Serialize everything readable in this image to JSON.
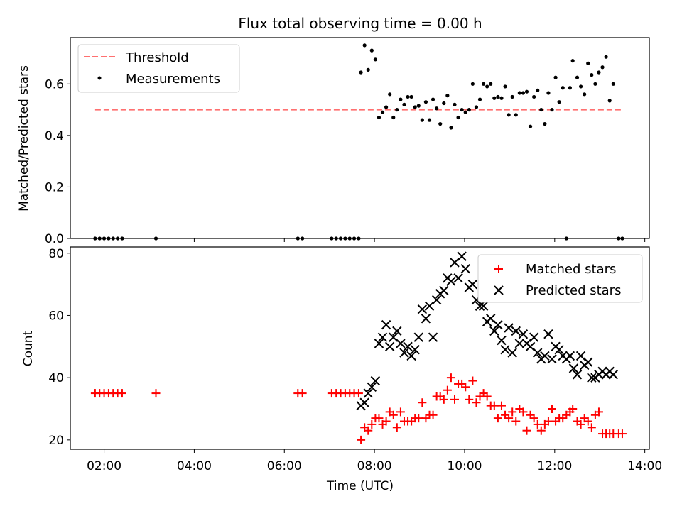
{
  "figure": {
    "title": "Flux total observing time = 0.00 h"
  },
  "chart_data": [
    {
      "type": "scatter",
      "title": "Flux total observing time = 0.00 h",
      "xlabel": "",
      "ylabel": "Matched/Predicted stars",
      "xlim": [
        1.25,
        14.1
      ],
      "ylim": [
        0.0,
        0.78
      ],
      "yticks": [
        0.0,
        0.2,
        0.4,
        0.6
      ],
      "ytick_labels": [
        "0.0",
        "0.2",
        "0.4",
        "0.6"
      ],
      "legend_position": "upper-left",
      "threshold": {
        "name": "Threshold",
        "y": 0.5,
        "x_range": [
          1.8,
          13.5
        ],
        "color": "#ff7070"
      },
      "series": [
        {
          "name": "Measurements",
          "marker": "dot",
          "color": "#000000",
          "x": [
            1.8,
            1.9,
            2.0,
            2.1,
            2.2,
            2.3,
            2.4,
            3.15,
            6.3,
            6.4,
            7.05,
            7.15,
            7.25,
            7.35,
            7.45,
            7.55,
            7.65,
            7.7,
            7.78,
            7.86,
            7.94,
            8.02,
            8.1,
            8.18,
            8.26,
            8.34,
            8.42,
            8.5,
            8.58,
            8.66,
            8.74,
            8.82,
            8.9,
            8.98,
            9.06,
            9.14,
            9.22,
            9.3,
            9.38,
            9.46,
            9.54,
            9.62,
            9.7,
            9.78,
            9.86,
            9.94,
            10.02,
            10.1,
            10.18,
            10.26,
            10.34,
            10.42,
            10.5,
            10.58,
            10.66,
            10.74,
            10.82,
            10.9,
            10.98,
            11.06,
            11.14,
            11.22,
            11.3,
            11.38,
            11.46,
            11.54,
            11.62,
            11.7,
            11.78,
            11.86,
            11.94,
            12.02,
            12.1,
            12.18,
            12.26,
            12.34,
            12.4,
            12.5,
            12.58,
            12.66,
            12.74,
            12.82,
            12.9,
            12.98,
            13.06,
            13.14,
            13.22,
            13.3,
            13.42,
            13.5
          ],
          "y": [
            0,
            0,
            0,
            0,
            0,
            0,
            0,
            0,
            0,
            0,
            0,
            0,
            0,
            0,
            0,
            0,
            0,
            0.645,
            0.75,
            0.655,
            0.73,
            0.695,
            0.47,
            0.49,
            0.51,
            0.56,
            0.47,
            0.5,
            0.54,
            0.52,
            0.55,
            0.55,
            0.51,
            0.515,
            0.46,
            0.53,
            0.46,
            0.54,
            0.505,
            0.445,
            0.525,
            0.555,
            0.43,
            0.52,
            0.47,
            0.5,
            0.49,
            0.5,
            0.6,
            0.51,
            0.54,
            0.6,
            0.59,
            0.6,
            0.545,
            0.55,
            0.545,
            0.59,
            0.48,
            0.55,
            0.48,
            0.565,
            0.565,
            0.57,
            0.435,
            0.55,
            0.575,
            0.5,
            0.445,
            0.565,
            0.5,
            0.625,
            0.53,
            0.585,
            0.0,
            0.585,
            0.69,
            0.625,
            0.59,
            0.56,
            0.68,
            0.635,
            0.6,
            0.645,
            0.665,
            0.705,
            0.535,
            0.6,
            0,
            0
          ]
        }
      ]
    },
    {
      "type": "scatter",
      "title": "",
      "xlabel": "Time (UTC)",
      "ylabel": "Count",
      "xlim": [
        1.25,
        14.1
      ],
      "ylim": [
        17,
        82
      ],
      "xticks": [
        2,
        4,
        6,
        8,
        10,
        12,
        14
      ],
      "xtick_labels": [
        "02:00",
        "04:00",
        "06:00",
        "08:00",
        "10:00",
        "12:00",
        "14:00"
      ],
      "yticks": [
        20,
        40,
        60,
        80
      ],
      "ytick_labels": [
        "20",
        "40",
        "60",
        "80"
      ],
      "legend_position": "upper-right",
      "series": [
        {
          "name": "Matched stars",
          "marker": "plus",
          "color": "#ff0000",
          "x": [
            1.8,
            1.9,
            2.0,
            2.1,
            2.2,
            2.3,
            2.4,
            3.15,
            6.3,
            6.4,
            7.05,
            7.15,
            7.25,
            7.35,
            7.45,
            7.55,
            7.65,
            7.7,
            7.78,
            7.86,
            7.94,
            8.02,
            8.1,
            8.18,
            8.26,
            8.34,
            8.42,
            8.5,
            8.58,
            8.66,
            8.74,
            8.82,
            8.9,
            8.98,
            9.06,
            9.14,
            9.22,
            9.3,
            9.38,
            9.46,
            9.54,
            9.62,
            9.7,
            9.78,
            9.86,
            9.94,
            10.02,
            10.1,
            10.18,
            10.26,
            10.34,
            10.42,
            10.5,
            10.58,
            10.66,
            10.74,
            10.82,
            10.9,
            10.98,
            11.06,
            11.14,
            11.22,
            11.3,
            11.38,
            11.46,
            11.54,
            11.62,
            11.7,
            11.78,
            11.86,
            11.94,
            12.02,
            12.1,
            12.18,
            12.26,
            12.34,
            12.4,
            12.5,
            12.58,
            12.66,
            12.74,
            12.82,
            12.9,
            12.98,
            13.06,
            13.14,
            13.22,
            13.3,
            13.42,
            13.5
          ],
          "y": [
            35,
            35,
            35,
            35,
            35,
            35,
            35,
            35,
            35,
            35,
            35,
            35,
            35,
            35,
            35,
            35,
            35,
            20,
            24,
            23,
            25,
            27,
            27,
            25,
            26,
            29,
            28,
            24,
            29,
            26,
            26,
            26,
            27,
            27,
            32,
            27,
            28,
            28,
            34,
            34,
            33,
            36,
            40,
            33,
            38,
            38,
            37,
            33,
            39,
            32,
            34,
            35,
            34,
            31,
            31,
            27,
            31,
            28,
            27,
            29,
            26,
            30,
            29,
            23,
            28,
            27,
            25,
            23,
            25,
            26,
            30,
            26,
            27,
            27,
            28,
            29,
            30,
            26,
            25,
            27,
            26,
            24,
            28,
            29,
            22,
            22,
            22,
            22,
            22,
            22
          ]
        },
        {
          "name": "Predicted stars",
          "marker": "x",
          "color": "#000000",
          "x": [
            7.7,
            7.78,
            7.86,
            7.94,
            8.02,
            8.1,
            8.18,
            8.26,
            8.34,
            8.42,
            8.5,
            8.58,
            8.66,
            8.74,
            8.82,
            8.9,
            8.98,
            9.06,
            9.14,
            9.22,
            9.3,
            9.38,
            9.46,
            9.54,
            9.62,
            9.7,
            9.78,
            9.86,
            9.94,
            10.02,
            10.1,
            10.18,
            10.26,
            10.34,
            10.42,
            10.5,
            10.58,
            10.66,
            10.74,
            10.82,
            10.9,
            10.98,
            11.06,
            11.14,
            11.22,
            11.3,
            11.38,
            11.46,
            11.54,
            11.62,
            11.7,
            11.78,
            11.86,
            11.94,
            12.02,
            12.1,
            12.18,
            12.26,
            12.34,
            12.42,
            12.5,
            12.58,
            12.66,
            12.74,
            12.82,
            12.9,
            12.98,
            13.06,
            13.14,
            13.22,
            13.3
          ],
          "y": [
            31,
            32,
            35,
            37,
            39,
            51,
            53,
            57,
            50,
            53,
            55,
            51,
            48,
            50,
            47,
            49,
            53,
            62,
            59,
            63,
            53,
            65,
            67,
            68,
            72,
            71,
            77,
            72,
            79,
            75,
            69,
            70,
            65,
            63,
            63,
            58,
            59,
            55,
            57,
            52,
            49,
            56,
            48,
            55,
            51,
            54,
            51,
            50,
            53,
            48,
            46,
            47,
            54,
            46,
            50,
            49,
            47,
            46,
            47,
            43,
            41,
            47,
            44,
            45,
            40,
            40,
            41,
            42,
            41,
            42,
            41
          ]
        }
      ]
    }
  ]
}
